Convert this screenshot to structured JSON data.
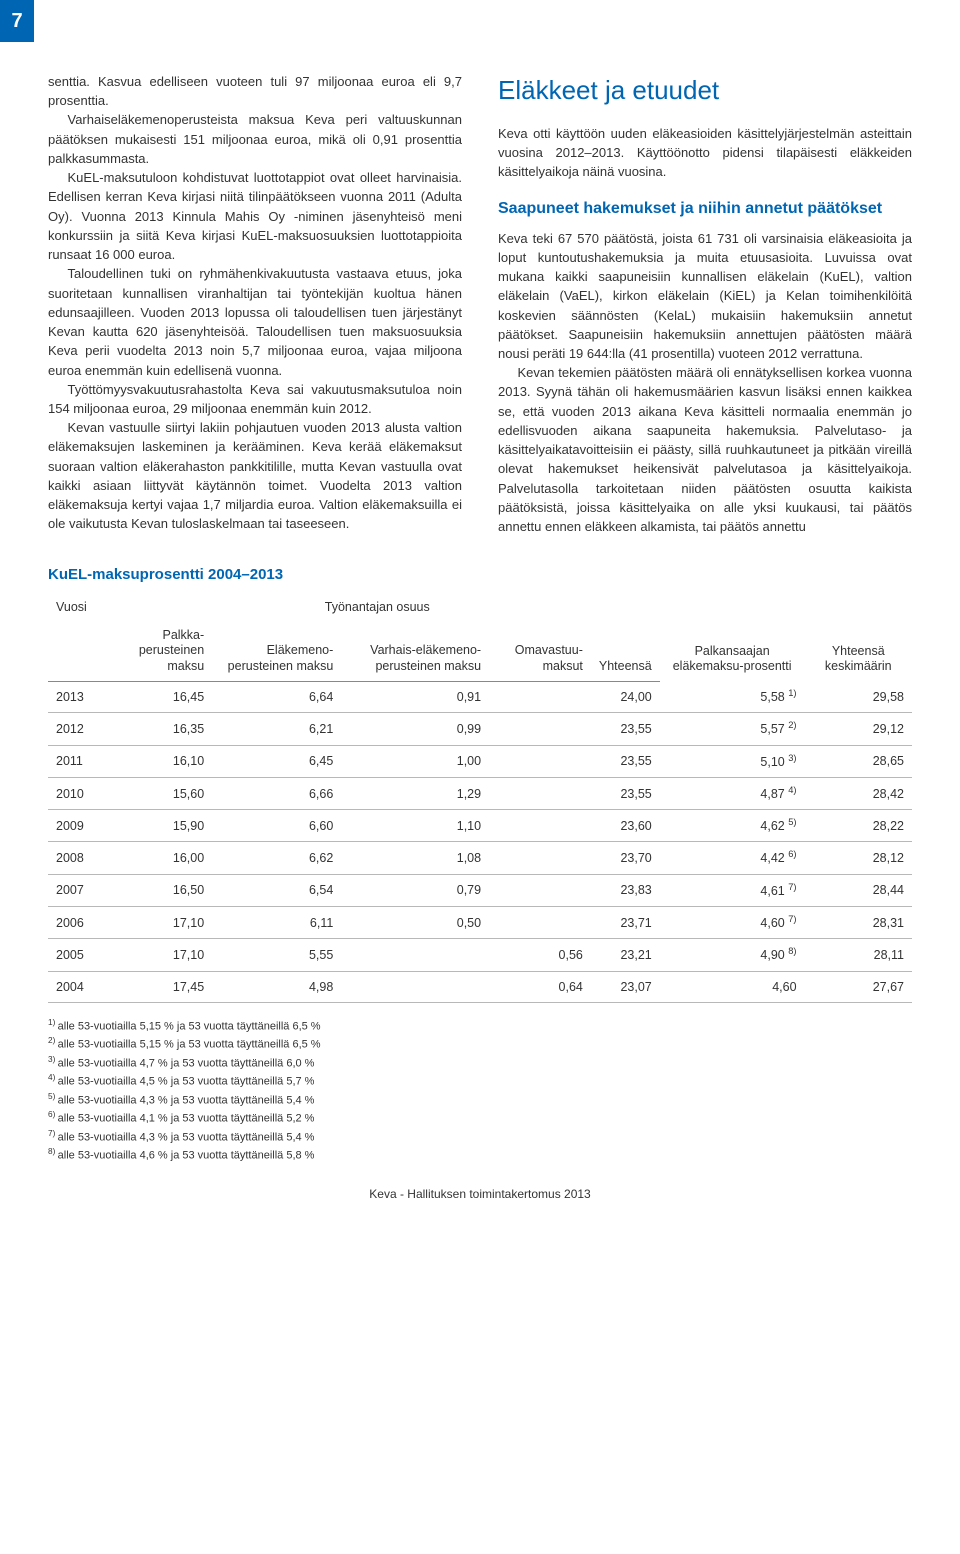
{
  "page_number": "7",
  "left_column": {
    "p1": "senttia. Kasvua edelliseen vuoteen tuli 97 miljoonaa euroa eli 9,7 prosenttia.",
    "p2": "Varhaiseläkemenoperusteista maksua Keva peri valtuuskunnan päätöksen mukaisesti 151 miljoonaa euroa, mikä oli 0,91 prosenttia palkkasummasta.",
    "p3": "KuEL-maksutuloon kohdistuvat luottotappiot ovat olleet harvinaisia. Edellisen kerran Keva kirjasi niitä tilinpäätökseen vuonna 2011 (Adulta Oy). Vuonna 2013 Kinnula Mahis Oy -niminen jäsenyhteisö meni konkurssiin ja siitä Keva kirjasi KuEL-maksuosuuksien luottotappioita runsaat 16 000 euroa.",
    "p4": "Taloudellinen tuki on ryhmähenkivakuutusta vastaava etuus, joka suoritetaan kunnallisen viranhaltijan tai työntekijän kuoltua hänen edunsaajilleen. Vuoden 2013 lopussa oli taloudellisen tuen järjestänyt Kevan kautta 620 jäsenyhteisöä. Taloudellisen tuen maksuosuuksia Keva perii vuodelta 2013 noin 5,7 miljoonaa euroa, vajaa miljoona euroa enemmän kuin edellisenä vuonna.",
    "p5": "Työttömyysvakuutusrahastolta Keva sai vakuutusmaksutuloa noin 154 miljoonaa euroa, 29 miljoonaa enemmän kuin 2012.",
    "p6": "Kevan vastuulle siirtyi lakiin pohjautuen vuoden 2013 alusta valtion eläkemaksujen laskeminen ja kerääminen. Keva kerää eläkemaksut suoraan valtion eläkerahaston pankkitilille, mutta Kevan vastuulla ovat kaikki asiaan liittyvät käytännön toimet. Vuodelta 2013 valtion eläkemaksuja kertyi vajaa 1,7 miljardia euroa. Valtion eläkemaksuilla ei ole vaikutusta Kevan tuloslaskelmaan tai taseeseen."
  },
  "right_column": {
    "heading": "Eläkkeet ja etuudet",
    "p1": "Keva otti käyttöön uuden eläkeasioiden käsittelyjärjestelmän asteittain vuosina 2012–2013. Käyttöönotto pidensi tilapäisesti eläkkeiden käsittelyaikoja näinä vuosina.",
    "subheading": "Saapuneet hakemukset ja niihin annetut päätökset",
    "p2": "Keva teki 67 570 päätöstä, joista 61 731 oli varsinaisia eläkeasioita ja loput kuntoutushakemuksia ja muita etuusasioita. Luvuissa ovat mukana kaikki saapuneisiin kunnallisen eläkelain (KuEL), valtion eläkelain (VaEL), kirkon eläkelain (KiEL) ja Kelan toimihenkilöitä koskevien säännösten (KelaL) mukaisiin hakemuksiin annetut päätökset. Saapuneisiin hakemuksiin annettujen päätösten määrä nousi peräti 19 644:lla (41 prosentilla) vuoteen 2012 verrattuna.",
    "p3": "Kevan tekemien päätösten määrä oli ennätyksellisen korkea vuonna 2013. Syynä tähän oli hakemusmäärien kasvun lisäksi ennen kaikkea se, että vuoden 2013 aikana Keva käsitteli normaalia enemmän jo edellisvuoden aikana saapuneita hakemuksia. Palvelutaso- ja käsittelyaikatavoitteisiin ei päästy, sillä ruuhkautuneet ja pitkään vireillä olevat hakemukset heikensivät palvelutasoa ja käsittelyaikoja. Palvelutasolla tarkoitetaan niiden päätösten osuutta kaikista päätöksistä, joissa käsittelyaika on alle yksi kuukausi, tai päätös annettu ennen eläkkeen alkamista, tai päätös annettu"
  },
  "table": {
    "title": "KuEL-maksuprosentti 2004–2013",
    "header_row1": {
      "c1": "Vuosi",
      "c2": "Työnantajan osuus",
      "c3": "Palkansaajan eläkemaksu-prosentti",
      "c4": "Yhteensä keskimäärin"
    },
    "header_row2": {
      "c1": "Palkka-perusteinen maksu",
      "c2": "Eläkemeno-perusteinen maksu",
      "c3": "Varhais-eläkemeno-perusteinen maksu",
      "c4": "Omavastuu-maksut",
      "c5": "Yhteensä"
    },
    "rows": [
      {
        "year": "2013",
        "c1": "16,45",
        "c2": "6,64",
        "c3": "0,91",
        "c4": "",
        "c5": "24,00",
        "c6": "5,58",
        "sup": "1)",
        "c7": "29,58"
      },
      {
        "year": "2012",
        "c1": "16,35",
        "c2": "6,21",
        "c3": "0,99",
        "c4": "",
        "c5": "23,55",
        "c6": "5,57",
        "sup": "2)",
        "c7": "29,12"
      },
      {
        "year": "2011",
        "c1": "16,10",
        "c2": "6,45",
        "c3": "1,00",
        "c4": "",
        "c5": "23,55",
        "c6": "5,10",
        "sup": "3)",
        "c7": "28,65"
      },
      {
        "year": "2010",
        "c1": "15,60",
        "c2": "6,66",
        "c3": "1,29",
        "c4": "",
        "c5": "23,55",
        "c6": "4,87",
        "sup": "4)",
        "c7": "28,42"
      },
      {
        "year": "2009",
        "c1": "15,90",
        "c2": "6,60",
        "c3": "1,10",
        "c4": "",
        "c5": "23,60",
        "c6": "4,62",
        "sup": "5)",
        "c7": "28,22"
      },
      {
        "year": "2008",
        "c1": "16,00",
        "c2": "6,62",
        "c3": "1,08",
        "c4": "",
        "c5": "23,70",
        "c6": "4,42",
        "sup": "6)",
        "c7": "28,12"
      },
      {
        "year": "2007",
        "c1": "16,50",
        "c2": "6,54",
        "c3": "0,79",
        "c4": "",
        "c5": "23,83",
        "c6": "4,61",
        "sup": "7)",
        "c7": "28,44"
      },
      {
        "year": "2006",
        "c1": "17,10",
        "c2": "6,11",
        "c3": "0,50",
        "c4": "",
        "c5": "23,71",
        "c6": "4,60",
        "sup": "7)",
        "c7": "28,31"
      },
      {
        "year": "2005",
        "c1": "17,10",
        "c2": "5,55",
        "c3": "",
        "c4": "0,56",
        "c5": "23,21",
        "c6": "4,90",
        "sup": "8)",
        "c7": "28,11"
      },
      {
        "year": "2004",
        "c1": "17,45",
        "c2": "4,98",
        "c3": "",
        "c4": "0,64",
        "c5": "23,07",
        "c6": "4,60",
        "sup": "",
        "c7": "27,67"
      }
    ],
    "footnotes": [
      "1) alle 53-vuotiailla 5,15 % ja 53 vuotta täyttäneillä 6,5 %",
      "2) alle 53-vuotiailla 5,15 % ja 53 vuotta täyttäneillä 6,5 %",
      "3) alle 53-vuotiailla 4,7 % ja 53 vuotta täyttäneillä 6,0 %",
      "4) alle 53-vuotiailla 4,5 % ja 53 vuotta täyttäneillä 5,7 %",
      "5) alle 53-vuotiailla 4,3 % ja 53 vuotta täyttäneillä 5,4 %",
      "6) alle 53-vuotiailla 4,1 % ja 53 vuotta täyttäneillä 5,2 %",
      "7) alle 53-vuotiailla 4,3 % ja 53 vuotta täyttäneillä 5,4 %",
      "8) alle 53-vuotiailla 4,6 % ja 53 vuotta täyttäneillä 5,8 %"
    ]
  },
  "footer": "Keva - Hallituksen toimintakertomus 2013",
  "colors": {
    "brand_blue": "#0066b3",
    "text": "#333333",
    "rule": "#b8b8b8"
  }
}
